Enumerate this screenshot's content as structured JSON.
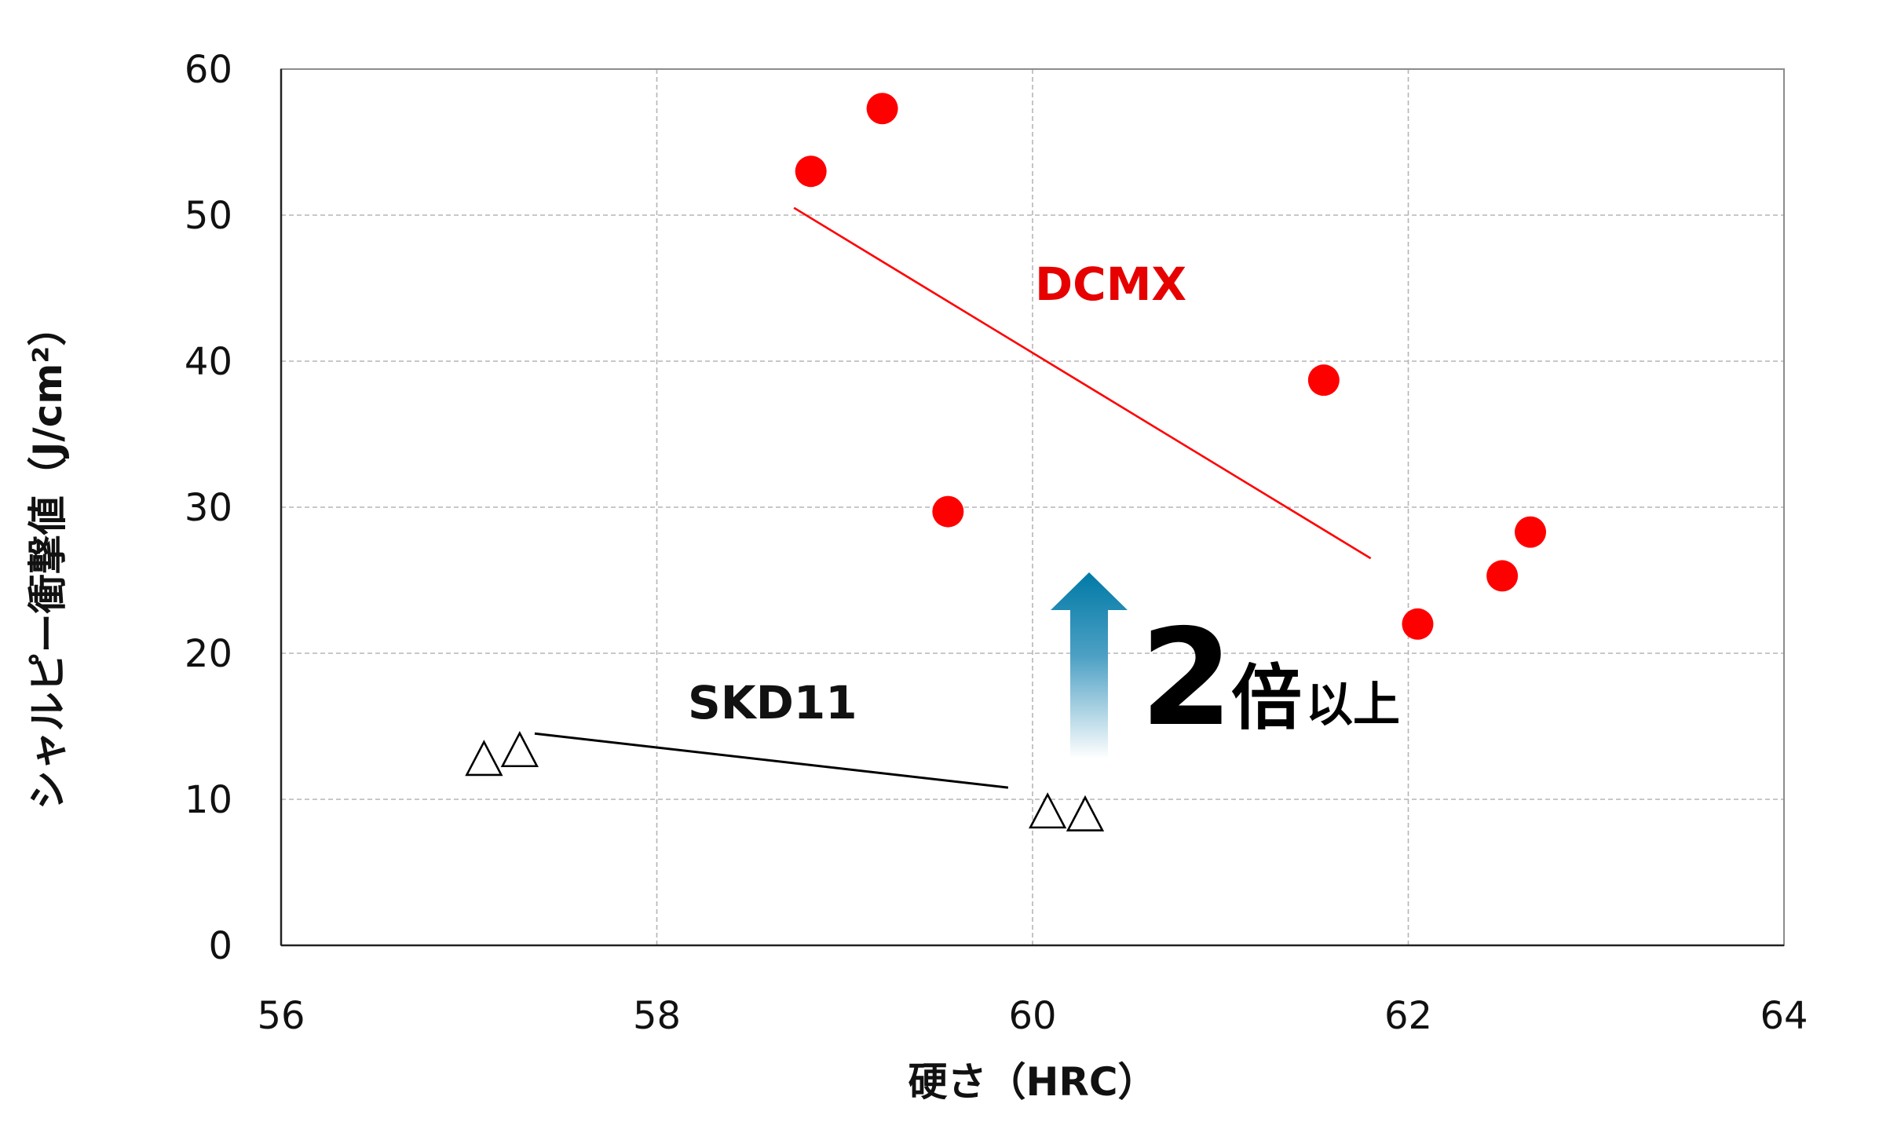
{
  "chart_data": {
    "type": "scatter",
    "xlabel": "硬さ（HRC）",
    "ylabel": "シャルピー衝撃値（J/cm²）",
    "xlim": [
      56,
      64
    ],
    "ylim": [
      0,
      60
    ],
    "xticks": [
      56,
      58,
      60,
      62,
      64
    ],
    "yticks": [
      0,
      10,
      20,
      30,
      40,
      50,
      60
    ],
    "grid": true,
    "series": [
      {
        "name": "DCMX",
        "marker": "filled-circle",
        "color": "#ff0000",
        "points": [
          {
            "x": 58.82,
            "y": 53.0
          },
          {
            "x": 59.2,
            "y": 57.3
          },
          {
            "x": 59.55,
            "y": 29.7
          },
          {
            "x": 61.55,
            "y": 38.7
          },
          {
            "x": 62.05,
            "y": 22.0
          },
          {
            "x": 62.5,
            "y": 25.3
          },
          {
            "x": 62.65,
            "y": 28.3
          }
        ],
        "trendline": [
          {
            "x": 58.73,
            "y": 50.5
          },
          {
            "x": 61.8,
            "y": 26.5
          }
        ]
      },
      {
        "name": "SKD11",
        "marker": "open-triangle",
        "color": "#000000",
        "points": [
          {
            "x": 57.08,
            "y": 12.8
          },
          {
            "x": 57.27,
            "y": 13.4
          },
          {
            "x": 60.08,
            "y": 9.2
          },
          {
            "x": 60.28,
            "y": 9.0
          }
        ],
        "trendline": [
          {
            "x": 57.35,
            "y": 14.5
          },
          {
            "x": 59.87,
            "y": 10.8
          }
        ]
      }
    ],
    "annotation": {
      "number": "2",
      "kanji": "倍",
      "suffix": "以上",
      "arrow_color": "#0a7aa3"
    }
  }
}
